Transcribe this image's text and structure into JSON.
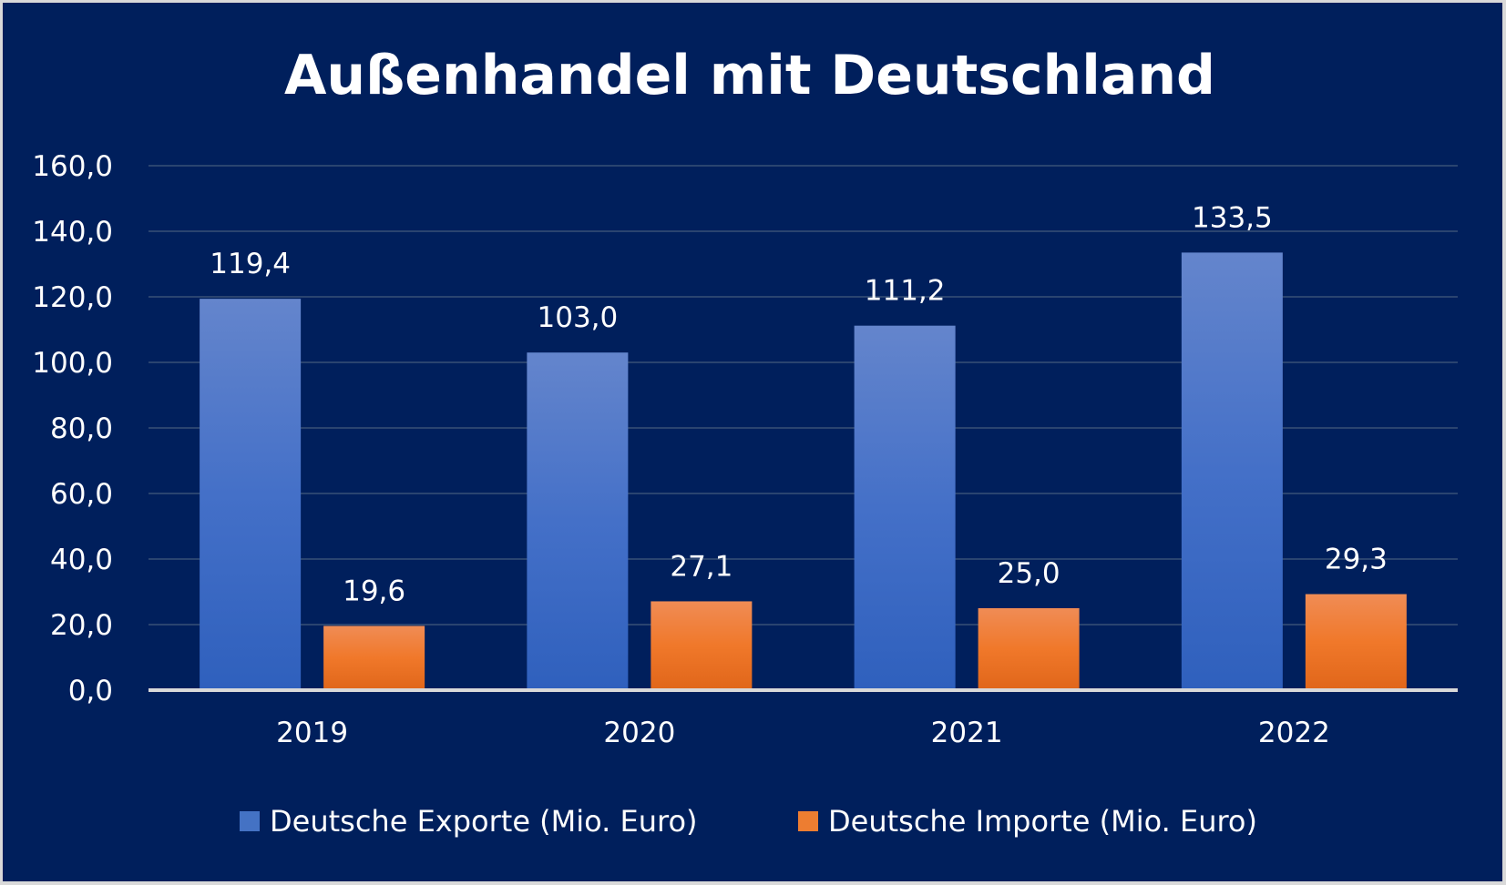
{
  "chart_data": {
    "type": "bar",
    "title": "Außenhandel mit Deutschland",
    "categories": [
      "2019",
      "2020",
      "2021",
      "2022"
    ],
    "series": [
      {
        "name": "Deutsche Exporte (Mio. Euro)",
        "values": [
          119.4,
          103.0,
          111.2,
          133.5
        ],
        "labels": [
          "119,4",
          "103,0",
          "111,2",
          "133,5"
        ],
        "color": "#4472c4"
      },
      {
        "name": "Deutsche Importe (Mio. Euro)",
        "values": [
          19.6,
          27.1,
          25.0,
          29.3
        ],
        "labels": [
          "19,6",
          "27,1",
          "25,0",
          "29,3"
        ],
        "color": "#ed7d31"
      }
    ],
    "ylim": [
      0,
      160
    ],
    "yticks": [
      "0,0",
      "20,0",
      "40,0",
      "60,0",
      "80,0",
      "100,0",
      "120,0",
      "140,0",
      "160,0"
    ],
    "grid": true,
    "legend": "bottom",
    "background": "#001f5c"
  }
}
